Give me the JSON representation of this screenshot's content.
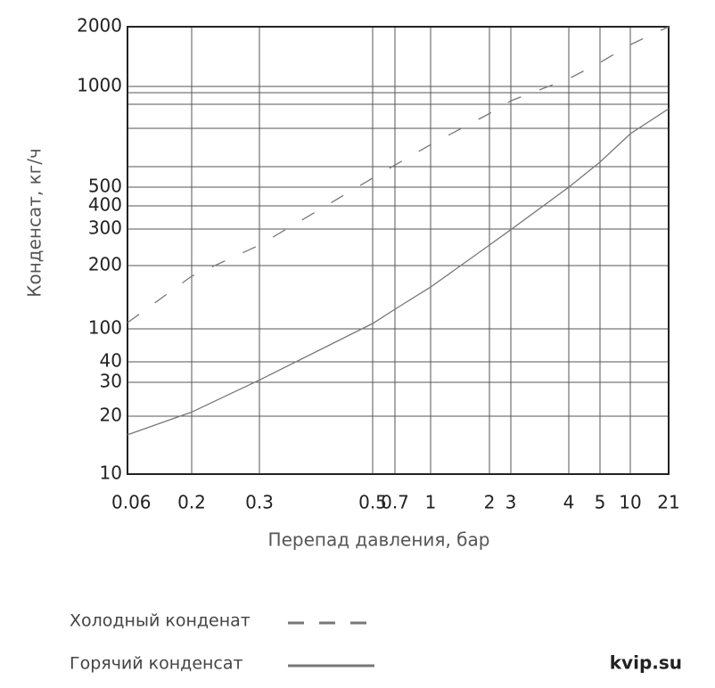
{
  "chart_data": {
    "type": "line",
    "y_label": "Конденсат, кг/ч",
    "x_label": "Перепад давления, бар",
    "x": [
      0.06,
      0.2,
      0.3,
      0.5,
      0.7,
      1,
      2,
      3,
      4,
      5,
      10,
      21
    ],
    "series": [
      {
        "name": "Холодный конденат",
        "color": "#777777",
        "dashed": true,
        "values": [
          107,
          178,
          251,
          532,
          582,
          670,
          830,
          906,
          1094,
          1320,
          1625,
          2000
        ]
      },
      {
        "name": "Горячий конденсат",
        "color": "#777777",
        "dashed": false,
        "values": [
          16,
          21,
          31,
          106,
          124,
          158,
          251,
          298,
          500,
          594,
          722,
          858
        ]
      }
    ],
    "xlim": [
      0.06,
      21
    ],
    "ylim": [
      10,
      2000
    ],
    "xticks": [
      0.06,
      0.2,
      0.3,
      0.5,
      0.7,
      1,
      2,
      3,
      4,
      5,
      10,
      21
    ],
    "yticks": [
      10,
      20,
      30,
      40,
      100,
      200,
      300,
      400,
      500,
      1000,
      2000
    ],
    "grid": true,
    "watermark": "kvip.su"
  }
}
